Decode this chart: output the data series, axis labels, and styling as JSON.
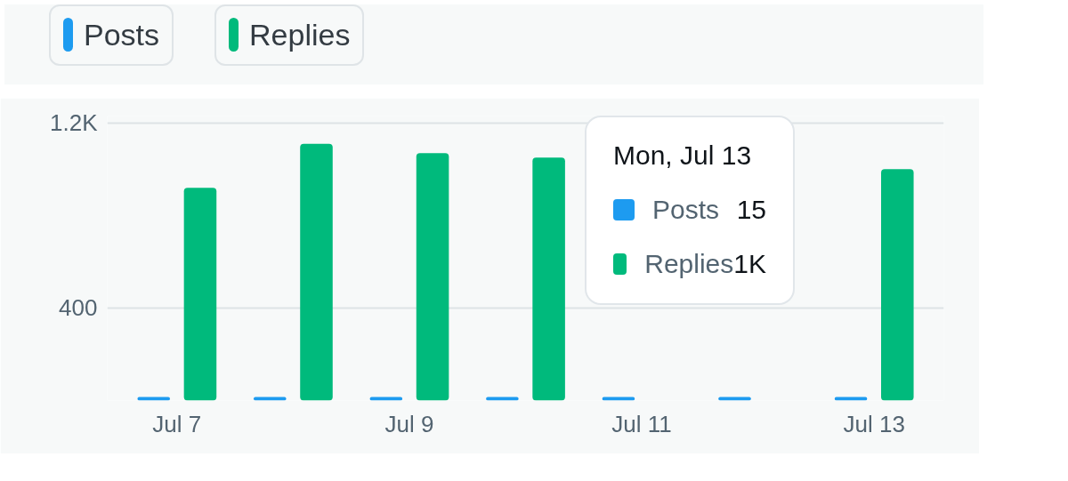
{
  "chart_data": {
    "type": "bar",
    "categories": [
      "Jul 7",
      null,
      "Jul 9",
      null,
      "Jul 11",
      null,
      "Jul 13"
    ],
    "series": [
      {
        "name": "Posts",
        "color": "#1d9bf0",
        "values": [
          15,
          15,
          15,
          15,
          15,
          15,
          15
        ]
      },
      {
        "name": "Replies",
        "color": "#00ba7c",
        "values": [
          920,
          1110,
          1070,
          1050,
          null,
          null,
          1000
        ]
      }
    ],
    "ylim": [
      0,
      1230
    ],
    "yticks": [
      {
        "value": 0,
        "label": null
      },
      400,
      {
        "value": 1200,
        "label": "1.2K"
      }
    ],
    "grid": "y",
    "legend": "top left",
    "annotations": [
      "Mon, Jul 13",
      "Posts",
      "15",
      "Replies",
      "1K"
    ]
  }
}
